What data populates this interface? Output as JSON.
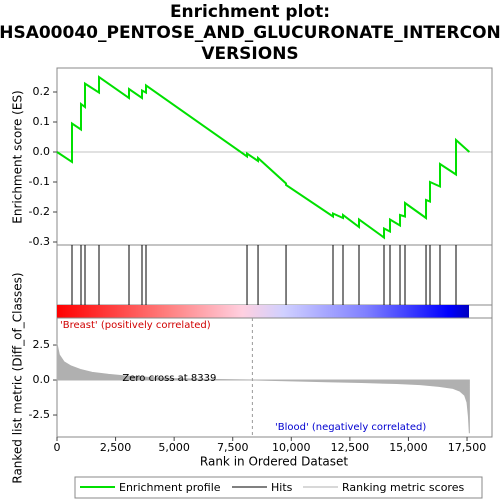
{
  "chart_data": {
    "type": "gsea",
    "title": [
      "Enrichment plot:",
      "HSA00040_PENTOSE_AND_GLUCURONATE_INTERCON",
      "VERSIONS"
    ],
    "ylabel": "Enrichment score (ES)",
    "ylabel2": "Ranked list metric (Diff_of_Classes)",
    "xlabel": "Rank in Ordered Dataset",
    "xlim": [
      0,
      18566
    ],
    "xticks": [
      0,
      {
        "value": 2500,
        "label": "2,500"
      },
      {
        "value": 5000,
        "label": "5,000"
      },
      {
        "value": 7500,
        "label": "7,500"
      },
      {
        "value": 10000,
        "label": "10,000"
      },
      {
        "value": 12500,
        "label": "12,500"
      },
      {
        "value": 15000,
        "label": "15,000"
      },
      {
        "value": 17500,
        "label": "17,500"
      }
    ],
    "ylim": [
      -0.31,
      0.28
    ],
    "yticks": [
      -0.3,
      -0.2,
      -0.1,
      {
        "value": 0,
        "label": "0.0"
      },
      0.1,
      0.2
    ],
    "y2lim": [
      -4.07,
      4.43
    ],
    "y2ticks": [
      -2.5,
      {
        "value": 0,
        "label": "0.0"
      },
      2.5
    ],
    "es": {
      "name": "Enrichment profile",
      "color": "#00e000",
      "x": [
        0,
        640,
        640,
        1024,
        1024,
        1195,
        1195,
        1793,
        1793,
        3073,
        3073,
        3628,
        3628,
        3799,
        3799,
        8110,
        8110,
        8580,
        8580,
        9775,
        9775,
        11780,
        11780,
        12207,
        12207,
        12890,
        12890,
        13957,
        13957,
        14213,
        14213,
        14640,
        14640,
        14853,
        14853,
        15750,
        15750,
        15920,
        15920,
        16347,
        16347,
        17030,
        17030,
        17600
      ],
      "values": [
        0,
        -0.033,
        0.095,
        0.075,
        0.16,
        0.15,
        0.228,
        0.198,
        0.25,
        0.18,
        0.21,
        0.18,
        0.205,
        0.198,
        0.222,
        -0.015,
        -0.005,
        -0.03,
        -0.02,
        -0.105,
        -0.11,
        -0.215,
        -0.205,
        -0.22,
        -0.21,
        -0.25,
        -0.225,
        -0.285,
        -0.255,
        -0.265,
        -0.225,
        -0.245,
        -0.21,
        -0.215,
        -0.17,
        -0.22,
        -0.16,
        -0.165,
        -0.1,
        -0.115,
        -0.04,
        -0.075,
        0.04,
        0
      ]
    },
    "hits": {
      "name": "Hits",
      "color": "#000000",
      "x": [
        640,
        1024,
        1195,
        1793,
        3073,
        3628,
        3799,
        8110,
        8580,
        9775,
        11780,
        12207,
        12890,
        13957,
        14213,
        14640,
        14853,
        15750,
        15920,
        16347,
        17030
      ]
    },
    "metric": {
      "name": "Ranking metric scores",
      "color": "#b0b0b0",
      "x": [
        0,
        100,
        300,
        600,
        1000,
        1500,
        2200,
        3000,
        4000,
        5000,
        6500,
        8339,
        10000,
        11500,
        13000,
        14500,
        15500,
        16300,
        16900,
        17200,
        17400,
        17500,
        17560,
        17600
      ],
      "values": [
        2.6,
        1.8,
        1.3,
        1.0,
        0.75,
        0.55,
        0.4,
        0.28,
        0.18,
        0.1,
        0.05,
        0,
        -0.06,
        -0.12,
        -0.18,
        -0.25,
        -0.33,
        -0.45,
        -0.6,
        -0.8,
        -1.1,
        -1.6,
        -2.6,
        -3.8
      ]
    },
    "pos_label": "'Breast' (positively correlated)",
    "neg_label": "'Blood' (negatively correlated)",
    "zero_cross": 8339,
    "zero_label": "Zero cross at 8339"
  }
}
